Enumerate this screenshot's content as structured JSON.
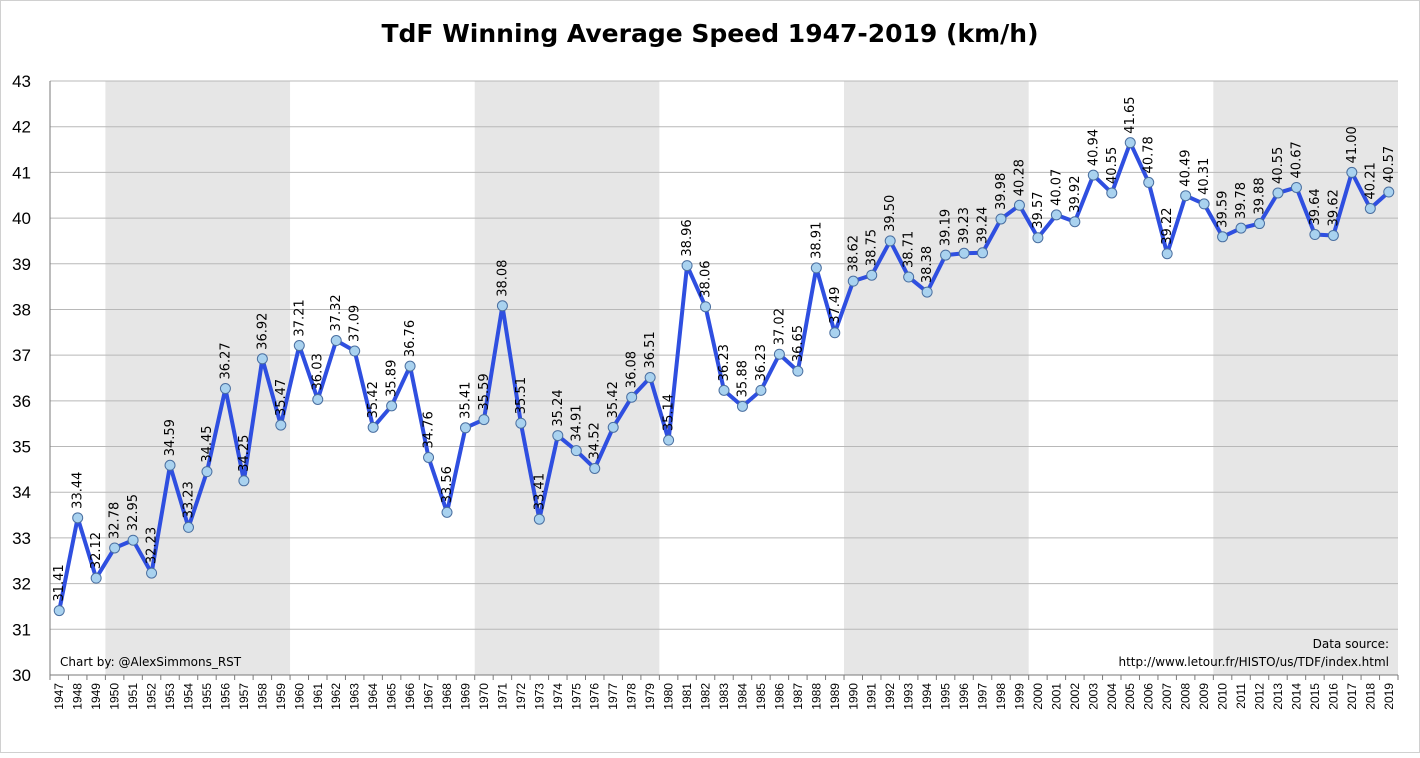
{
  "chart_data": {
    "type": "line",
    "title": "TdF Winning Average Speed 1947-2019 (km/h)",
    "xlabel": "",
    "ylabel": "",
    "ylim": [
      30,
      43
    ],
    "y_ticks": [
      30,
      31,
      32,
      33,
      34,
      35,
      36,
      37,
      38,
      39,
      40,
      41,
      42,
      43
    ],
    "grid": "horizontal",
    "legend": "none",
    "line_color": "#2f4fe0",
    "marker_fill": "#a9d2ef",
    "marker_stroke": "#4a6fa0",
    "band_color": "#e6e6e6",
    "shaded_bands": [
      [
        1950,
        1959
      ],
      [
        1970,
        1979
      ],
      [
        1990,
        1999
      ],
      [
        2010,
        2019
      ]
    ],
    "categories": [
      "1947",
      "1948",
      "1949",
      "1950",
      "1951",
      "1952",
      "1953",
      "1954",
      "1955",
      "1956",
      "1957",
      "1958",
      "1959",
      "1960",
      "1961",
      "1962",
      "1963",
      "1964",
      "1965",
      "1966",
      "1967",
      "1968",
      "1969",
      "1970",
      "1971",
      "1972",
      "1973",
      "1974",
      "1975",
      "1976",
      "1977",
      "1978",
      "1979",
      "1980",
      "1981",
      "1982",
      "1983",
      "1984",
      "1985",
      "1986",
      "1987",
      "1988",
      "1989",
      "1990",
      "1991",
      "1992",
      "1993",
      "1994",
      "1995",
      "1996",
      "1997",
      "1998",
      "1999",
      "2000",
      "2001",
      "2002",
      "2003",
      "2004",
      "2005",
      "2006",
      "2007",
      "2008",
      "2009",
      "2010",
      "2011",
      "2012",
      "2013",
      "2014",
      "2015",
      "2016",
      "2017",
      "2018",
      "2019"
    ],
    "series": [
      {
        "values": [
          31.41,
          33.44,
          32.12,
          32.78,
          32.95,
          32.23,
          34.59,
          33.23,
          34.45,
          36.27,
          34.25,
          36.92,
          35.47,
          37.21,
          36.03,
          37.32,
          37.09,
          35.42,
          35.89,
          36.76,
          34.76,
          33.56,
          35.41,
          35.59,
          38.08,
          35.51,
          33.41,
          35.24,
          34.91,
          34.52,
          35.42,
          36.08,
          36.51,
          35.14,
          38.96,
          38.06,
          36.23,
          35.88,
          36.23,
          37.02,
          36.65,
          38.91,
          37.49,
          38.62,
          38.75,
          39.5,
          38.71,
          38.38,
          39.19,
          39.23,
          39.24,
          39.98,
          40.28,
          39.57,
          40.07,
          39.92,
          40.94,
          40.55,
          41.65,
          40.78,
          39.22,
          40.49,
          40.31,
          39.59,
          39.78,
          39.88,
          40.55,
          40.67,
          39.64,
          39.62,
          41.0,
          40.21,
          40.57
        ],
        "labels": [
          "31.41",
          "33.44",
          "32.12",
          "32.78",
          "32.95",
          "32.23",
          "34.59",
          "33.23",
          "34.45",
          "36.27",
          "34.25",
          "36.92",
          "35.47",
          "37.21",
          "36.03",
          "37.32",
          "37.09",
          "35.42",
          "35.89",
          "36.76",
          "34.76",
          "33.56",
          "35.41",
          "35.59",
          "38.08",
          "35.51",
          "33.41",
          "35.24",
          "34.91",
          "34.52",
          "35.42",
          "36.08",
          "36.51",
          "35.14",
          "38.96",
          "38.06",
          "36.23",
          "35.88",
          "36.23",
          "37.02",
          "36.65",
          "38.91",
          "37.49",
          "38.62",
          "38.75",
          "39.50",
          "38.71",
          "38.38",
          "39.19",
          "39.23",
          "39.24",
          "39.98",
          "40.28",
          "39.57",
          "40.07",
          "39.92",
          "40.94",
          "40.55",
          "41.65",
          "40.78",
          "39.22",
          "40.49",
          "40.31",
          "39.59",
          "39.78",
          "39.88",
          "40.55",
          "40.67",
          "39.64",
          "39.62",
          "41.00",
          "40.21",
          "40.57"
        ]
      }
    ],
    "annotations": {
      "credit": "Chart by: @AlexSimmons_RST",
      "source_line1": "Data source:",
      "source_line2": "http://www.letour.fr/HISTO/us/TDF/index.html"
    }
  }
}
